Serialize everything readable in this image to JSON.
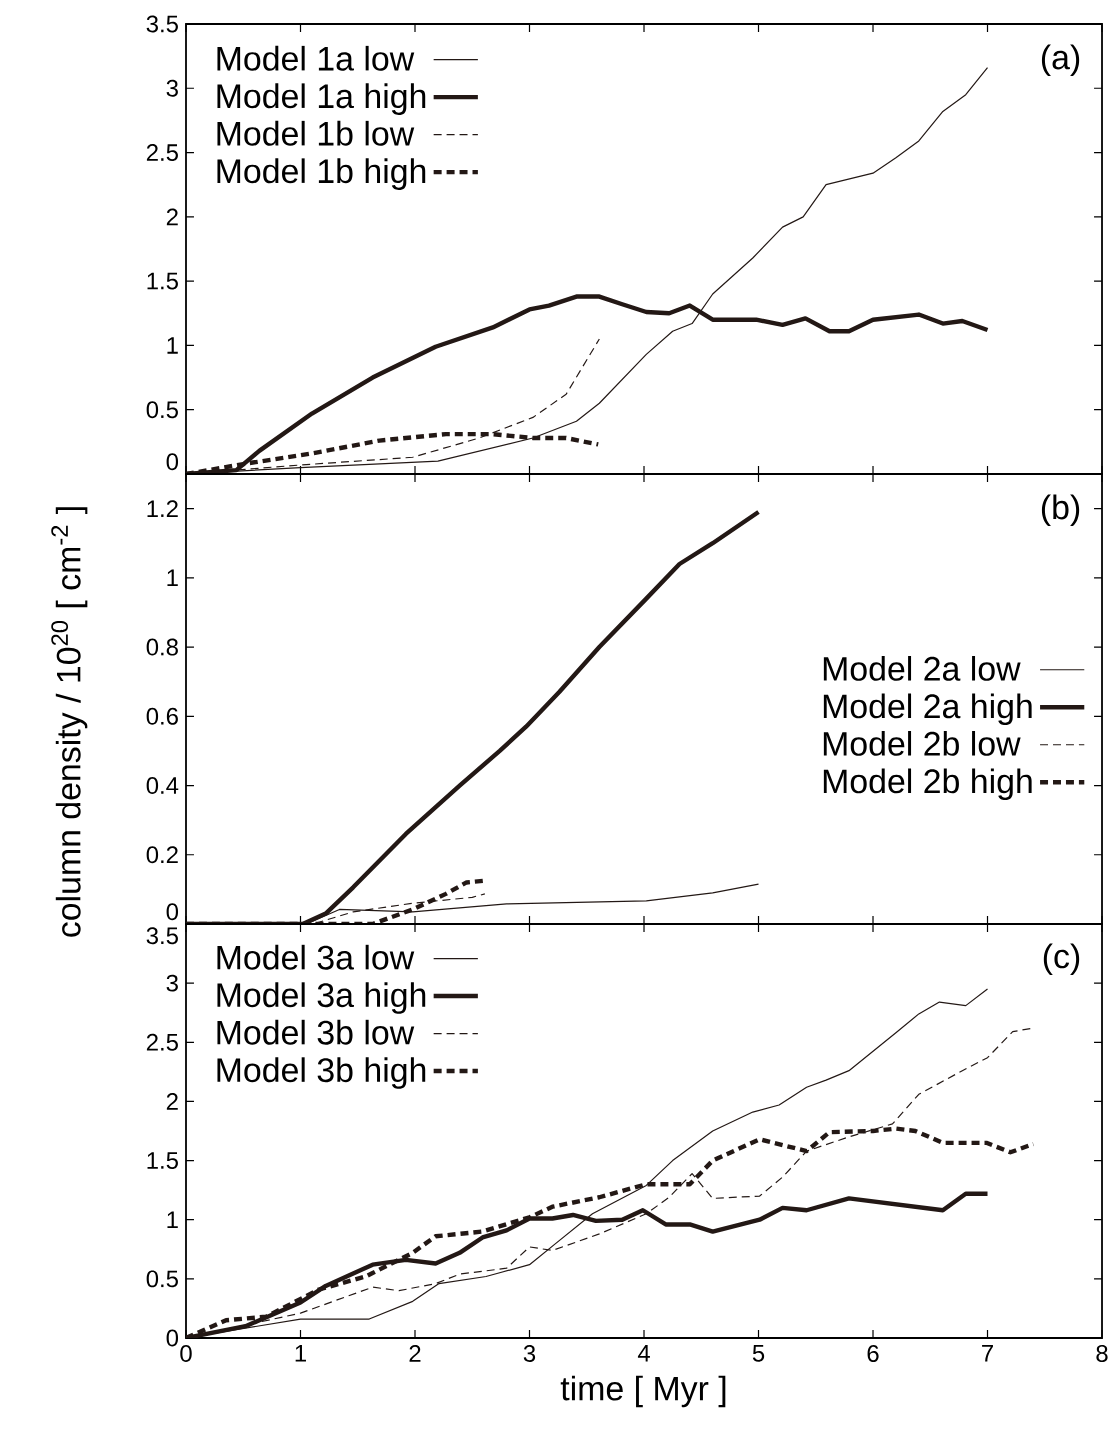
{
  "chart_data": [
    {
      "type": "line",
      "xlim": [
        0,
        8
      ],
      "ylim": [
        0,
        3.5
      ],
      "xticks": [
        0,
        1,
        2,
        3,
        4,
        5,
        6,
        7,
        8
      ],
      "yticks": [
        0,
        0.5,
        1,
        1.5,
        2,
        2.5,
        3,
        3.5
      ],
      "tick_labels": "y",
      "legend": "top left",
      "annotations": [
        "(a)"
      ],
      "series": [
        {
          "name": "Model 1a low",
          "color": "#231815",
          "line_style": "solid",
          "x": [
            0,
            1,
            2.2,
            3.03,
            3.41,
            3.61,
            4.02,
            4.25,
            4.42,
            4.6,
            4.95,
            5.21,
            5.39,
            5.59,
            6.0,
            6.2,
            6.4,
            6.61,
            6.81,
            7.0
          ],
          "values": [
            0,
            0.05,
            0.1,
            0.28,
            0.41,
            0.55,
            0.93,
            1.11,
            1.17,
            1.4,
            1.68,
            1.92,
            2.0,
            2.25,
            2.34,
            2.46,
            2.59,
            2.82,
            2.95,
            3.16
          ]
        },
        {
          "name": "Model 1a high",
          "color": "#231815",
          "line_style": "solid",
          "x": [
            0,
            0.44,
            0.64,
            1.1,
            1.63,
            2.18,
            2.68,
            3.0,
            3.17,
            3.41,
            3.61,
            3.81,
            4.02,
            4.22,
            4.4,
            4.6,
            4.98,
            5.21,
            5.41,
            5.62,
            5.79,
            6.0,
            6.4,
            6.61,
            6.78,
            7.0
          ],
          "values": [
            0,
            0.03,
            0.18,
            0.47,
            0.75,
            0.99,
            1.14,
            1.28,
            1.31,
            1.38,
            1.38,
            1.32,
            1.26,
            1.25,
            1.31,
            1.2,
            1.2,
            1.16,
            1.21,
            1.11,
            1.11,
            1.2,
            1.24,
            1.17,
            1.19,
            1.12
          ]
        },
        {
          "name": "Model 1b low",
          "color": "#231815",
          "line_style": "dashed",
          "x": [
            0,
            1,
            1.98,
            2.56,
            3.03,
            3.32,
            3.61
          ],
          "values": [
            0,
            0.07,
            0.13,
            0.28,
            0.44,
            0.62,
            1.05
          ]
        },
        {
          "name": "Model 1b high",
          "color": "#231815",
          "line_style": "dashed",
          "x": [
            0,
            0.52,
            1.1,
            1.69,
            2.27,
            2.68,
            3.03,
            3.32,
            3.6
          ],
          "values": [
            0,
            0.08,
            0.16,
            0.26,
            0.31,
            0.31,
            0.28,
            0.28,
            0.23
          ]
        }
      ]
    },
    {
      "type": "line",
      "xlim": [
        0,
        8
      ],
      "ylim": [
        0,
        1.3
      ],
      "xticks": [
        0,
        1,
        2,
        3,
        4,
        5,
        6,
        7,
        8
      ],
      "yticks": [
        0,
        0.2,
        0.4,
        0.6,
        0.8,
        1,
        1.2
      ],
      "tick_labels": "y",
      "legend": "right",
      "annotations": [
        "(b)"
      ],
      "ylabel": "column density / 10$^{20}$  [ cm$^{-2}$ ]",
      "series": [
        {
          "name": "Model 2a low",
          "color": "#231815",
          "line_style": "solid",
          "x": [
            0,
            1.05,
            1.34,
            1.98,
            2.8,
            4.02,
            4.6,
            5.0
          ],
          "values": [
            0,
            0,
            0.042,
            0.035,
            0.058,
            0.067,
            0.09,
            0.115
          ]
        },
        {
          "name": "Model 2a high",
          "color": "#231815",
          "line_style": "solid",
          "x": [
            0,
            1.02,
            1.22,
            1.46,
            1.92,
            2.39,
            2.74,
            2.97,
            3.26,
            3.61,
            4.02,
            4.31,
            4.6,
            5.0
          ],
          "values": [
            0,
            0,
            0.03,
            0.106,
            0.26,
            0.4,
            0.5,
            0.57,
            0.67,
            0.8,
            0.94,
            1.04,
            1.1,
            1.19
          ]
        },
        {
          "name": "Model 2b low",
          "color": "#231815",
          "line_style": "dashed",
          "x": [
            0,
            1.11,
            1.46,
            1.98,
            2.5,
            2.61
          ],
          "values": [
            0,
            0,
            0.035,
            0.06,
            0.077,
            0.087
          ]
        },
        {
          "name": "Model 2b high",
          "color": "#231815",
          "line_style": "dashed",
          "x": [
            0,
            1.63,
            1.98,
            2.27,
            2.45,
            2.61
          ],
          "values": [
            0,
            0,
            0.042,
            0.087,
            0.12,
            0.125
          ]
        }
      ]
    },
    {
      "type": "line",
      "xlim": [
        0,
        8
      ],
      "ylim": [
        0,
        3.5
      ],
      "xticks": [
        0,
        1,
        2,
        3,
        4,
        5,
        6,
        7,
        8
      ],
      "yticks": [
        0,
        0.5,
        1,
        1.5,
        2,
        2.5,
        3,
        3.5
      ],
      "legend": "top left",
      "annotations": [
        "(c)"
      ],
      "xlabel": "time [ Myr ]",
      "series": [
        {
          "name": "Model 3a low",
          "color": "#231815",
          "line_style": "solid",
          "x": [
            0,
            1,
            1.6,
            1.98,
            2.21,
            2.62,
            3.0,
            3.23,
            3.55,
            4.02,
            4.25,
            4.6,
            4.95,
            5.18,
            5.42,
            5.59,
            5.79,
            6.2,
            6.4,
            6.58,
            6.81,
            7.0
          ],
          "values": [
            0,
            0.16,
            0.16,
            0.31,
            0.46,
            0.52,
            0.62,
            0.8,
            1.05,
            1.29,
            1.5,
            1.75,
            1.91,
            1.97,
            2.12,
            2.18,
            2.26,
            2.58,
            2.74,
            2.84,
            2.81,
            2.95
          ]
        },
        {
          "name": "Model 3a high",
          "color": "#231815",
          "line_style": "solid",
          "x": [
            0,
            0.52,
            1,
            1.22,
            1.63,
            1.92,
            2.18,
            2.39,
            2.59,
            2.8,
            3.0,
            3.2,
            3.38,
            3.58,
            3.81,
            3.99,
            4.19,
            4.4,
            4.6,
            5.01,
            5.21,
            5.42,
            5.79,
            6.2,
            6.61,
            6.81,
            7.0
          ],
          "values": [
            0,
            0.1,
            0.3,
            0.44,
            0.62,
            0.66,
            0.63,
            0.72,
            0.85,
            0.91,
            1.01,
            1.01,
            1.04,
            0.99,
            1.0,
            1.08,
            0.96,
            0.96,
            0.9,
            1.0,
            1.1,
            1.08,
            1.18,
            1.13,
            1.08,
            1.22,
            1.22
          ]
        },
        {
          "name": "Model 3b low",
          "color": "#231815",
          "line_style": "dashed",
          "x": [
            0,
            1,
            1.63,
            1.86,
            2.18,
            2.39,
            2.8,
            3.0,
            3.2,
            3.61,
            4.02,
            4.22,
            4.42,
            4.6,
            5.01,
            5.21,
            5.42,
            5.79,
            6.17,
            6.4,
            6.78,
            7.0,
            7.22,
            7.4
          ],
          "values": [
            0,
            0.21,
            0.43,
            0.4,
            0.46,
            0.54,
            0.59,
            0.77,
            0.74,
            0.88,
            1.05,
            1.19,
            1.39,
            1.18,
            1.2,
            1.36,
            1.58,
            1.7,
            1.81,
            2.06,
            2.26,
            2.37,
            2.59,
            2.62
          ]
        },
        {
          "name": "Model 3b high",
          "color": "#231815",
          "line_style": "dashed",
          "x": [
            0,
            0.35,
            0.7,
            1.16,
            1.57,
            1.98,
            2.18,
            2.59,
            3.0,
            3.2,
            3.61,
            4.02,
            4.4,
            4.6,
            5.01,
            5.42,
            5.62,
            6.0,
            6.2,
            6.37,
            6.61,
            6.99,
            7.2,
            7.4
          ],
          "values": [
            0,
            0.15,
            0.18,
            0.41,
            0.52,
            0.72,
            0.86,
            0.9,
            1.02,
            1.11,
            1.19,
            1.3,
            1.3,
            1.5,
            1.68,
            1.58,
            1.74,
            1.75,
            1.77,
            1.75,
            1.65,
            1.65,
            1.57,
            1.64
          ]
        }
      ]
    }
  ]
}
